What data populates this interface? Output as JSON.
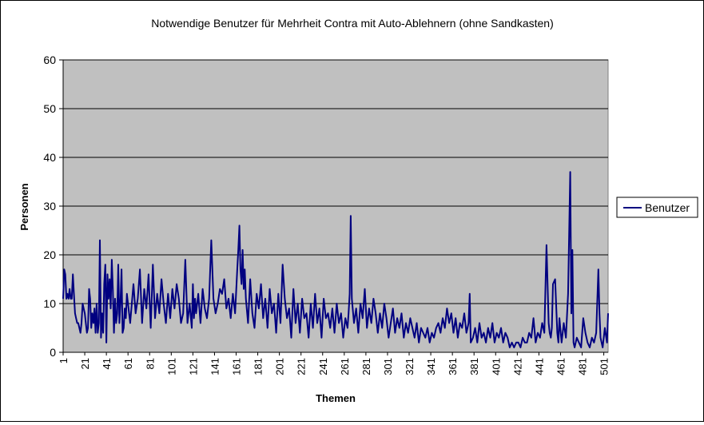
{
  "chart_data": {
    "type": "line",
    "title": "Notwendige Benutzer für Mehrheit Contra mit Auto-Ablehnern (ohne Sandkasten)",
    "xlabel": "Themen",
    "ylabel": "Personen",
    "ylim": [
      0,
      60
    ],
    "yticks": [
      0,
      10,
      20,
      30,
      40,
      50,
      60
    ],
    "xlim": [
      1,
      505
    ],
    "xticks": [
      1,
      21,
      41,
      61,
      81,
      101,
      121,
      141,
      161,
      181,
      201,
      221,
      241,
      261,
      281,
      301,
      321,
      341,
      361,
      381,
      401,
      421,
      441,
      461,
      481,
      501
    ],
    "grid": "horizontal",
    "legend_position": "right",
    "colors": {
      "plot_area": "#c0c0c0",
      "series": "#000080"
    },
    "series": [
      {
        "name": "Benutzer",
        "x": [
          1,
          2,
          3,
          4,
          5,
          6,
          7,
          8,
          9,
          10,
          11,
          12,
          13,
          14,
          15,
          16,
          17,
          18,
          19,
          20,
          21,
          22,
          23,
          24,
          25,
          26,
          27,
          28,
          29,
          30,
          31,
          32,
          33,
          34,
          35,
          36,
          37,
          38,
          39,
          40,
          41,
          42,
          43,
          44,
          45,
          46,
          47,
          48,
          49,
          50,
          51,
          52,
          53,
          54,
          55,
          56,
          57,
          58,
          59,
          60,
          63,
          66,
          68,
          70,
          72,
          74,
          76,
          78,
          80,
          82,
          84,
          86,
          88,
          90,
          92,
          94,
          96,
          98,
          100,
          102,
          104,
          106,
          108,
          110,
          112,
          114,
          116,
          118,
          120,
          121,
          122,
          123,
          124,
          126,
          128,
          130,
          132,
          134,
          136,
          138,
          140,
          142,
          144,
          146,
          148,
          150,
          152,
          154,
          156,
          158,
          160,
          162,
          163,
          164,
          165,
          166,
          167,
          168,
          169,
          170,
          172,
          174,
          176,
          178,
          180,
          182,
          184,
          186,
          188,
          190,
          192,
          194,
          196,
          198,
          200,
          202,
          204,
          206,
          208,
          210,
          212,
          214,
          216,
          218,
          220,
          222,
          224,
          226,
          228,
          230,
          232,
          234,
          236,
          238,
          240,
          242,
          244,
          246,
          248,
          250,
          252,
          254,
          256,
          258,
          260,
          262,
          264,
          265,
          266,
          267,
          268,
          270,
          272,
          274,
          276,
          278,
          280,
          282,
          284,
          286,
          288,
          290,
          292,
          294,
          296,
          298,
          300,
          302,
          304,
          306,
          308,
          310,
          312,
          314,
          316,
          318,
          320,
          322,
          324,
          326,
          328,
          330,
          332,
          334,
          336,
          338,
          340,
          342,
          344,
          346,
          348,
          350,
          352,
          354,
          356,
          358,
          360,
          362,
          364,
          366,
          368,
          370,
          372,
          374,
          376,
          377,
          378,
          380,
          382,
          384,
          386,
          388,
          390,
          392,
          394,
          396,
          398,
          400,
          402,
          404,
          406,
          408,
          410,
          412,
          414,
          416,
          418,
          420,
          422,
          424,
          426,
          428,
          430,
          432,
          434,
          436,
          438,
          440,
          442,
          444,
          446,
          448,
          450,
          451,
          452,
          453,
          454,
          456,
          458,
          459,
          460,
          462,
          464,
          466,
          468,
          470,
          471,
          472,
          473,
          474,
          476,
          478,
          480,
          482,
          484,
          486,
          488,
          490,
          492,
          494,
          496,
          497,
          498,
          500,
          502,
          504,
          505
        ],
        "values": [
          11,
          17,
          16,
          11,
          12,
          11,
          13,
          11,
          11,
          16,
          12,
          8,
          7,
          6,
          6,
          5,
          4,
          6,
          10,
          9,
          8,
          6,
          4,
          5,
          13,
          11,
          5,
          8,
          6,
          9,
          4,
          10,
          4,
          6,
          23,
          3,
          8,
          4,
          14,
          18,
          2,
          16,
          11,
          15,
          9,
          19,
          13,
          4,
          11,
          6,
          8,
          18,
          6,
          10,
          17,
          4,
          5,
          9,
          7,
          12,
          6,
          14,
          8,
          11,
          17,
          6,
          13,
          9,
          16,
          5,
          18,
          7,
          12,
          8,
          15,
          10,
          6,
          12,
          7,
          13,
          9,
          14,
          11,
          6,
          8,
          19,
          6,
          10,
          5,
          14,
          7,
          11,
          8,
          12,
          6,
          13,
          9,
          7,
          11,
          23,
          11,
          8,
          10,
          13,
          12,
          15,
          9,
          11,
          7,
          12,
          8,
          17,
          21,
          26,
          17,
          14,
          21,
          13,
          17,
          11,
          6,
          15,
          8,
          5,
          12,
          9,
          14,
          7,
          11,
          5,
          13,
          8,
          10,
          4,
          12,
          6,
          18,
          11,
          7,
          9,
          3,
          13,
          6,
          10,
          4,
          11,
          7,
          8,
          3,
          10,
          5,
          12,
          6,
          9,
          3,
          11,
          7,
          8,
          5,
          9,
          4,
          10,
          6,
          8,
          3,
          7,
          5,
          8,
          12,
          28,
          11,
          6,
          9,
          4,
          10,
          7,
          13,
          5,
          9,
          6,
          11,
          8,
          4,
          8,
          5,
          10,
          7,
          3,
          6,
          9,
          4,
          7,
          5,
          8,
          3,
          6,
          4,
          7,
          5,
          3,
          6,
          2,
          5,
          4,
          3,
          5,
          2,
          4,
          3,
          5,
          6,
          4,
          7,
          5,
          9,
          6,
          8,
          4,
          7,
          3,
          6,
          5,
          8,
          4,
          6,
          12,
          2,
          3,
          5,
          2,
          6,
          3,
          4,
          2,
          5,
          3,
          6,
          2,
          4,
          3,
          5,
          2,
          4,
          3,
          1,
          2,
          1,
          2,
          2,
          1,
          3,
          2,
          2,
          4,
          3,
          7,
          2,
          4,
          3,
          6,
          4,
          22,
          6,
          4,
          3,
          5,
          14,
          15,
          4,
          2,
          7,
          2,
          6,
          3,
          12,
          37,
          8,
          21,
          2,
          1,
          3,
          2,
          1,
          7,
          4,
          2,
          1,
          3,
          2,
          4,
          17,
          8,
          3,
          1,
          5,
          2,
          8
        ]
      }
    ]
  }
}
